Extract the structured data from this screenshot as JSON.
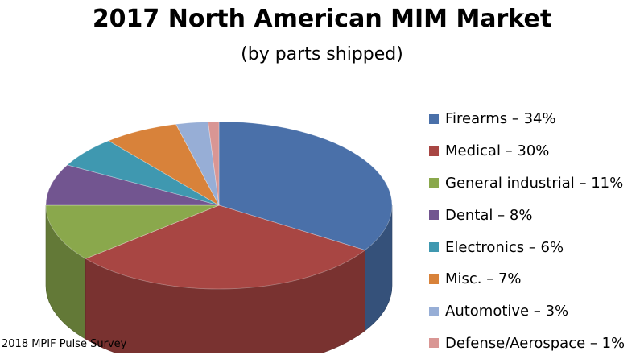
{
  "chart_data": {
    "type": "pie",
    "title": "2017 North American MIM Market",
    "subtitle": "(by parts shipped)",
    "legend_position": "right",
    "three_d": true,
    "slices": [
      {
        "label": "Firearms – 34%",
        "value": 34,
        "color": "#4a70a9"
      },
      {
        "label": "Medical – 30%",
        "value": 30,
        "color": "#a84643"
      },
      {
        "label": "General industrial – 11%",
        "value": 11,
        "color": "#8aa84c"
      },
      {
        "label": "Dental – 8%",
        "value": 8,
        "color": "#725590"
      },
      {
        "label": "Electronics – 6%",
        "value": 6,
        "color": "#3f98b0"
      },
      {
        "label": "Misc. – 7%",
        "value": 7,
        "color": "#d8823a"
      },
      {
        "label": "Automotive – 3%",
        "value": 3,
        "color": "#97aed6"
      },
      {
        "label": "Defense/Aerospace – 1%",
        "value": 1,
        "color": "#d99694"
      }
    ]
  },
  "source": "2018 MPIF Pulse Survey"
}
